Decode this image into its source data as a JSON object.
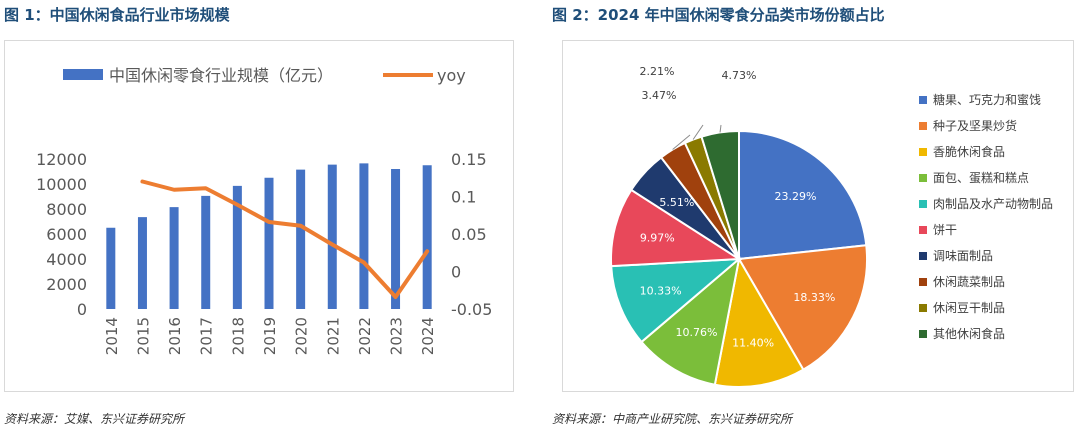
{
  "figure1": {
    "title": "图 1：中国休闲食品行业市场规模",
    "source": "资料来源：艾媒、东兴证券研究所"
  },
  "figure2": {
    "title": "图 2：2024 年中国休闲零食分品类市场份额占比",
    "source": "资料来源：中商产业研究院、东兴证券研究所"
  },
  "chart_data": [
    {
      "type": "bar",
      "title": "",
      "categories": [
        "2014",
        "2015",
        "2016",
        "2017",
        "2018",
        "2019",
        "2020",
        "2021",
        "2022",
        "2023",
        "2024"
      ],
      "series": [
        {
          "name": "中国休闲零食行业规模（亿元）",
          "axis": "left",
          "kind": "bar",
          "color": "#4472c4",
          "values": [
            6500,
            7350,
            8150,
            9050,
            9850,
            10500,
            11150,
            11550,
            11650,
            11200,
            11500
          ]
        },
        {
          "name": "yoy",
          "axis": "right",
          "kind": "line",
          "color": "#ed7d31",
          "values": [
            null,
            0.12,
            0.109,
            0.111,
            0.089,
            0.066,
            0.061,
            0.036,
            0.012,
            -0.034,
            0.027
          ]
        }
      ],
      "y_left": {
        "lim": [
          0,
          12000
        ],
        "ticks": [
          0,
          2000,
          4000,
          6000,
          8000,
          10000,
          12000
        ],
        "labels": [
          "0",
          "2000",
          "4000",
          "6000",
          "8000",
          "10000",
          "12000"
        ]
      },
      "y_right": {
        "lim": [
          -0.05,
          0.15
        ],
        "ticks": [
          -0.05,
          0,
          0.05,
          0.1,
          0.15
        ],
        "labels": [
          "-0.05",
          "0",
          "0.05",
          "0.1",
          "0.15"
        ]
      },
      "legend": "top",
      "grid": false
    },
    {
      "type": "pie",
      "title": "",
      "slices": [
        {
          "name": "糖果、巧克力和蜜饯",
          "value": 23.29,
          "label": "23.29%",
          "color": "#4472c4"
        },
        {
          "name": "种子及坚果炒货",
          "value": 18.33,
          "label": "18.33%",
          "color": "#ed7d31"
        },
        {
          "name": "香脆休闲食品",
          "value": 11.4,
          "label": "11.40%",
          "color": "#f0b800"
        },
        {
          "name": "面包、蛋糕和糕点",
          "value": 10.76,
          "label": "10.76%",
          "color": "#7bbe3a"
        },
        {
          "name": "肉制品及水产动物制品",
          "value": 10.33,
          "label": "10.33%",
          "color": "#29c0b4"
        },
        {
          "name": "饼干",
          "value": 9.97,
          "label": "9.97%",
          "color": "#e8485a"
        },
        {
          "name": "调味面制品",
          "value": 5.51,
          "label": "5.51%",
          "color": "#1f3a6e"
        },
        {
          "name": "休闲蔬菜制品",
          "value": 3.47,
          "label": "3.47%",
          "color": "#a0410d"
        },
        {
          "name": "休闲豆干制品",
          "value": 2.21,
          "label": "2.21%",
          "color": "#8a7a00"
        },
        {
          "name": "其他休闲食品",
          "value": 4.73,
          "label": "4.73%",
          "color": "#2e6b30"
        }
      ],
      "legend": "right"
    }
  ]
}
